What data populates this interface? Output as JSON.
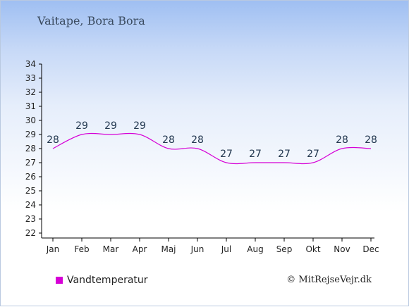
{
  "location": "Vaitape, Bora Bora",
  "copyright": "© MitRejseVejr.dk",
  "colors": {
    "series": "#d600d6",
    "legend_marker": "#d600d6"
  },
  "chart_data": {
    "type": "line",
    "categories": [
      "Jan",
      "Feb",
      "Mar",
      "Apr",
      "Maj",
      "Jun",
      "Jul",
      "Aug",
      "Sep",
      "Okt",
      "Nov",
      "Dec"
    ],
    "series": [
      {
        "name": "Vandtemperatur",
        "values": [
          28,
          29,
          29,
          29,
          28,
          28,
          27,
          27,
          27,
          27,
          28,
          28
        ]
      }
    ],
    "data_labels": [
      "28",
      "29",
      "29",
      "29",
      "28",
      "28",
      "27",
      "27",
      "27",
      "27",
      "28",
      "28"
    ],
    "y_ticks": [
      "22",
      "23",
      "24",
      "25",
      "26",
      "27",
      "28",
      "29",
      "30",
      "31",
      "32",
      "33",
      "34"
    ],
    "ylim": [
      22,
      34
    ],
    "grid": false,
    "legend_position": "bottom-left"
  }
}
